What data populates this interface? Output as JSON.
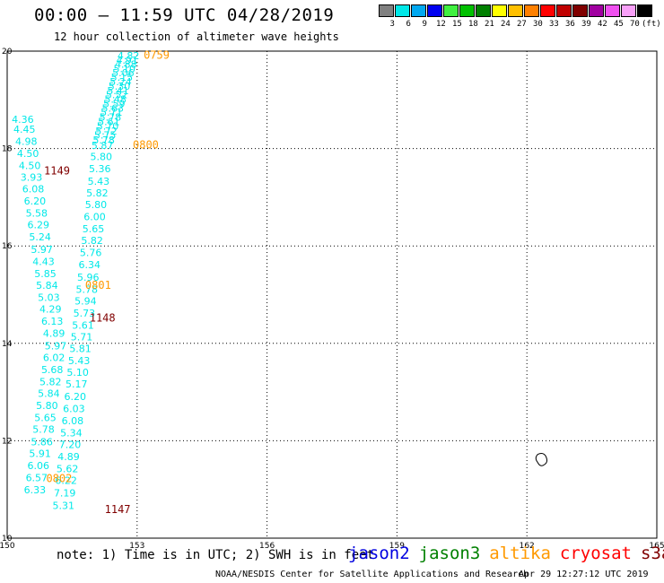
{
  "title": "00:00 – 11:59 UTC 04/28/2019",
  "subtitle": "12 hour collection of altimeter wave heights",
  "legend": {
    "colors": [
      "#808080",
      "#00e8e8",
      "#00a8f0",
      "#0000f0",
      "#40f040",
      "#00c000",
      "#008000",
      "#ffff00",
      "#ffc000",
      "#ff8000",
      "#ff0000",
      "#c00000",
      "#800000",
      "#a000a0",
      "#f050f0",
      "#f8a0f8",
      "#000000"
    ],
    "labels": [
      "3",
      "6",
      "9",
      "12",
      "15",
      "18",
      "21",
      "24",
      "27",
      "30",
      "33",
      "36",
      "39",
      "42",
      "45",
      "70",
      "(ft)"
    ]
  },
  "chart_data": {
    "type": "scatter",
    "x_ticks": [
      "150",
      "153",
      "156",
      "159",
      "162",
      "165"
    ],
    "y_ticks": [
      "10",
      "12",
      "14",
      "16",
      "18",
      "20"
    ],
    "xlim": [
      150,
      165
    ],
    "ylim": [
      10,
      20
    ],
    "grid": true,
    "values": [
      {
        "x": 152.8,
        "y": 19.83,
        "v": "4.82",
        "c": "#00e8e8"
      },
      {
        "x": 152.77,
        "y": 19.74,
        "v": "4.91",
        "c": "#00e8e8"
      },
      {
        "x": 152.74,
        "y": 19.66,
        "v": "4.88",
        "c": "#00e8e8"
      },
      {
        "x": 152.71,
        "y": 19.57,
        "v": "5.10",
        "c": "#00e8e8"
      },
      {
        "x": 152.68,
        "y": 19.48,
        "v": "5.06",
        "c": "#00e8e8"
      },
      {
        "x": 152.65,
        "y": 19.39,
        "v": "5.15",
        "c": "#00e8e8"
      },
      {
        "x": 152.62,
        "y": 19.3,
        "v": "5.24",
        "c": "#00e8e8"
      },
      {
        "x": 152.59,
        "y": 19.21,
        "v": "5.30",
        "c": "#00e8e8"
      },
      {
        "x": 152.56,
        "y": 19.12,
        "v": "5.41",
        "c": "#00e8e8"
      },
      {
        "x": 152.53,
        "y": 19.03,
        "v": "5.52",
        "c": "#00e8e8"
      },
      {
        "x": 152.5,
        "y": 18.94,
        "v": "5.48",
        "c": "#00e8e8"
      },
      {
        "x": 152.47,
        "y": 18.85,
        "v": "5.59",
        "c": "#00e8e8"
      },
      {
        "x": 152.44,
        "y": 18.76,
        "v": "5.63",
        "c": "#00e8e8"
      },
      {
        "x": 152.41,
        "y": 18.67,
        "v": "5.71",
        "c": "#00e8e8"
      },
      {
        "x": 152.38,
        "y": 18.57,
        "v": "5.78",
        "c": "#00e8e8"
      },
      {
        "x": 152.35,
        "y": 18.48,
        "v": "5.61",
        "c": "#00e8e8"
      },
      {
        "x": 152.32,
        "y": 18.39,
        "v": "5.70",
        "c": "#00e8e8"
      },
      {
        "x": 152.29,
        "y": 18.29,
        "v": "5.72",
        "c": "#00e8e8"
      },
      {
        "x": 152.26,
        "y": 18.2,
        "v": "5.75",
        "c": "#00e8e8"
      },
      {
        "x": 152.23,
        "y": 18.1,
        "v": "5.78",
        "c": "#00e8e8"
      },
      {
        "x": 152.2,
        "y": 17.99,
        "v": "5.87",
        "c": "#00e8e8"
      },
      {
        "x": 152.17,
        "y": 17.76,
        "v": "5.80",
        "c": "#00e8e8"
      },
      {
        "x": 152.14,
        "y": 17.51,
        "v": "5.36",
        "c": "#00e8e8"
      },
      {
        "x": 152.11,
        "y": 17.26,
        "v": "5.43",
        "c": "#00e8e8"
      },
      {
        "x": 152.08,
        "y": 17.02,
        "v": "5.82",
        "c": "#00e8e8"
      },
      {
        "x": 152.05,
        "y": 16.78,
        "v": "5.80",
        "c": "#00e8e8"
      },
      {
        "x": 152.02,
        "y": 16.53,
        "v": "6.00",
        "c": "#00e8e8"
      },
      {
        "x": 151.99,
        "y": 16.28,
        "v": "5.65",
        "c": "#00e8e8"
      },
      {
        "x": 151.96,
        "y": 16.04,
        "v": "5.82",
        "c": "#00e8e8"
      },
      {
        "x": 151.93,
        "y": 15.79,
        "v": "5.76",
        "c": "#00e8e8"
      },
      {
        "x": 151.9,
        "y": 15.54,
        "v": "6.34",
        "c": "#00e8e8"
      },
      {
        "x": 151.87,
        "y": 15.29,
        "v": "5.96",
        "c": "#00e8e8"
      },
      {
        "x": 151.84,
        "y": 15.04,
        "v": "5.78",
        "c": "#00e8e8"
      },
      {
        "x": 151.81,
        "y": 14.8,
        "v": "5.94",
        "c": "#00e8e8"
      },
      {
        "x": 151.78,
        "y": 14.55,
        "v": "5.73",
        "c": "#00e8e8"
      },
      {
        "x": 151.75,
        "y": 14.3,
        "v": "5.61",
        "c": "#00e8e8"
      },
      {
        "x": 151.72,
        "y": 14.06,
        "v": "5.71",
        "c": "#00e8e8"
      },
      {
        "x": 151.69,
        "y": 13.82,
        "v": "5.81",
        "c": "#00e8e8"
      },
      {
        "x": 151.66,
        "y": 13.57,
        "v": "5.43",
        "c": "#00e8e8"
      },
      {
        "x": 151.63,
        "y": 13.33,
        "v": "5.10",
        "c": "#00e8e8"
      },
      {
        "x": 151.6,
        "y": 13.09,
        "v": "5.17",
        "c": "#00e8e8"
      },
      {
        "x": 151.57,
        "y": 12.84,
        "v": "6.20",
        "c": "#00e8e8"
      },
      {
        "x": 151.54,
        "y": 12.59,
        "v": "6.03",
        "c": "#00e8e8"
      },
      {
        "x": 151.51,
        "y": 12.34,
        "v": "6.08",
        "c": "#00e8e8"
      },
      {
        "x": 151.48,
        "y": 12.09,
        "v": "5.34",
        "c": "#00e8e8"
      },
      {
        "x": 151.45,
        "y": 11.85,
        "v": "7.20",
        "c": "#00e8e8"
      },
      {
        "x": 151.42,
        "y": 11.6,
        "v": "4.89",
        "c": "#00e8e8"
      },
      {
        "x": 151.39,
        "y": 11.35,
        "v": "5.62",
        "c": "#00e8e8"
      },
      {
        "x": 151.36,
        "y": 11.11,
        "v": "6.22",
        "c": "#00e8e8"
      },
      {
        "x": 151.33,
        "y": 10.86,
        "v": "7.19",
        "c": "#00e8e8"
      },
      {
        "x": 151.3,
        "y": 10.6,
        "v": "5.31",
        "c": "#00e8e8"
      },
      {
        "x": 150.36,
        "y": 18.53,
        "v": "4.36",
        "c": "#00e8e8"
      },
      {
        "x": 150.4,
        "y": 18.32,
        "v": "4.45",
        "c": "#00e8e8"
      },
      {
        "x": 150.44,
        "y": 18.08,
        "v": "4.98",
        "c": "#00e8e8"
      },
      {
        "x": 150.48,
        "y": 17.83,
        "v": "4.50",
        "c": "#00e8e8"
      },
      {
        "x": 150.52,
        "y": 17.58,
        "v": "4.50",
        "c": "#00e8e8"
      },
      {
        "x": 150.56,
        "y": 17.34,
        "v": "3.93",
        "c": "#00e8e8"
      },
      {
        "x": 150.6,
        "y": 17.1,
        "v": "6.08",
        "c": "#00e8e8"
      },
      {
        "x": 150.64,
        "y": 16.85,
        "v": "6.20",
        "c": "#00e8e8"
      },
      {
        "x": 150.68,
        "y": 16.6,
        "v": "5.58",
        "c": "#00e8e8"
      },
      {
        "x": 150.72,
        "y": 16.36,
        "v": "6.29",
        "c": "#00e8e8"
      },
      {
        "x": 150.76,
        "y": 16.11,
        "v": "5.24",
        "c": "#00e8e8"
      },
      {
        "x": 150.8,
        "y": 15.86,
        "v": "5.97",
        "c": "#00e8e8"
      },
      {
        "x": 150.84,
        "y": 15.61,
        "v": "4.43",
        "c": "#00e8e8"
      },
      {
        "x": 150.88,
        "y": 15.36,
        "v": "5.85",
        "c": "#00e8e8"
      },
      {
        "x": 150.92,
        "y": 15.12,
        "v": "5.84",
        "c": "#00e8e8"
      },
      {
        "x": 150.96,
        "y": 14.87,
        "v": "5.03",
        "c": "#00e8e8"
      },
      {
        "x": 151.0,
        "y": 14.63,
        "v": "4.29",
        "c": "#00e8e8"
      },
      {
        "x": 151.04,
        "y": 14.38,
        "v": "6.13",
        "c": "#00e8e8"
      },
      {
        "x": 151.08,
        "y": 14.13,
        "v": "4.89",
        "c": "#00e8e8"
      },
      {
        "x": 151.12,
        "y": 13.88,
        "v": "5.97",
        "c": "#00e8e8"
      },
      {
        "x": 151.08,
        "y": 13.64,
        "v": "6.02",
        "c": "#00e8e8"
      },
      {
        "x": 151.04,
        "y": 13.39,
        "v": "5.68",
        "c": "#00e8e8"
      },
      {
        "x": 151.0,
        "y": 13.14,
        "v": "5.82",
        "c": "#00e8e8"
      },
      {
        "x": 150.96,
        "y": 12.9,
        "v": "5.84",
        "c": "#00e8e8"
      },
      {
        "x": 150.92,
        "y": 12.65,
        "v": "5.80",
        "c": "#00e8e8"
      },
      {
        "x": 150.88,
        "y": 12.4,
        "v": "5.65",
        "c": "#00e8e8"
      },
      {
        "x": 150.84,
        "y": 12.16,
        "v": "5.78",
        "c": "#00e8e8"
      },
      {
        "x": 150.8,
        "y": 11.91,
        "v": "5.86",
        "c": "#00e8e8"
      },
      {
        "x": 150.76,
        "y": 11.67,
        "v": "5.91",
        "c": "#00e8e8"
      },
      {
        "x": 150.72,
        "y": 11.42,
        "v": "6.06",
        "c": "#00e8e8"
      },
      {
        "x": 150.68,
        "y": 11.17,
        "v": "6.57",
        "c": "#00e8e8"
      },
      {
        "x": 150.64,
        "y": 10.92,
        "v": "6.33",
        "c": "#00e8e8"
      }
    ],
    "times": [
      {
        "x": 153.45,
        "y": 19.84,
        "v": "0759",
        "c": "#ff9900"
      },
      {
        "x": 153.2,
        "y": 18.0,
        "v": "0800",
        "c": "#ff9900"
      },
      {
        "x": 152.1,
        "y": 15.12,
        "v": "0801",
        "c": "#ff9900"
      },
      {
        "x": 151.2,
        "y": 11.15,
        "v": "0802",
        "c": "#ff9900"
      },
      {
        "x": 151.15,
        "y": 17.47,
        "v": "1149",
        "c": "#800000"
      },
      {
        "x": 152.2,
        "y": 14.45,
        "v": "1148",
        "c": "#800000"
      },
      {
        "x": 152.55,
        "y": 10.52,
        "v": "1147",
        "c": "#800000"
      }
    ]
  },
  "note": "note: 1) Time is in UTC; 2) SWH is in feet",
  "satellites": [
    {
      "name": "jason2",
      "color": "#0000e0"
    },
    {
      "name": "jason3",
      "color": "#008000"
    },
    {
      "name": "altika",
      "color": "#ff9900"
    },
    {
      "name": "cryosat",
      "color": "#ff0000"
    },
    {
      "name": "s3a",
      "color": "#800000"
    }
  ],
  "credit": "NOAA/NESDIS Center for Satellite Applications and Research",
  "timestamp": "Apr 29 12:27:12 UTC 2019"
}
